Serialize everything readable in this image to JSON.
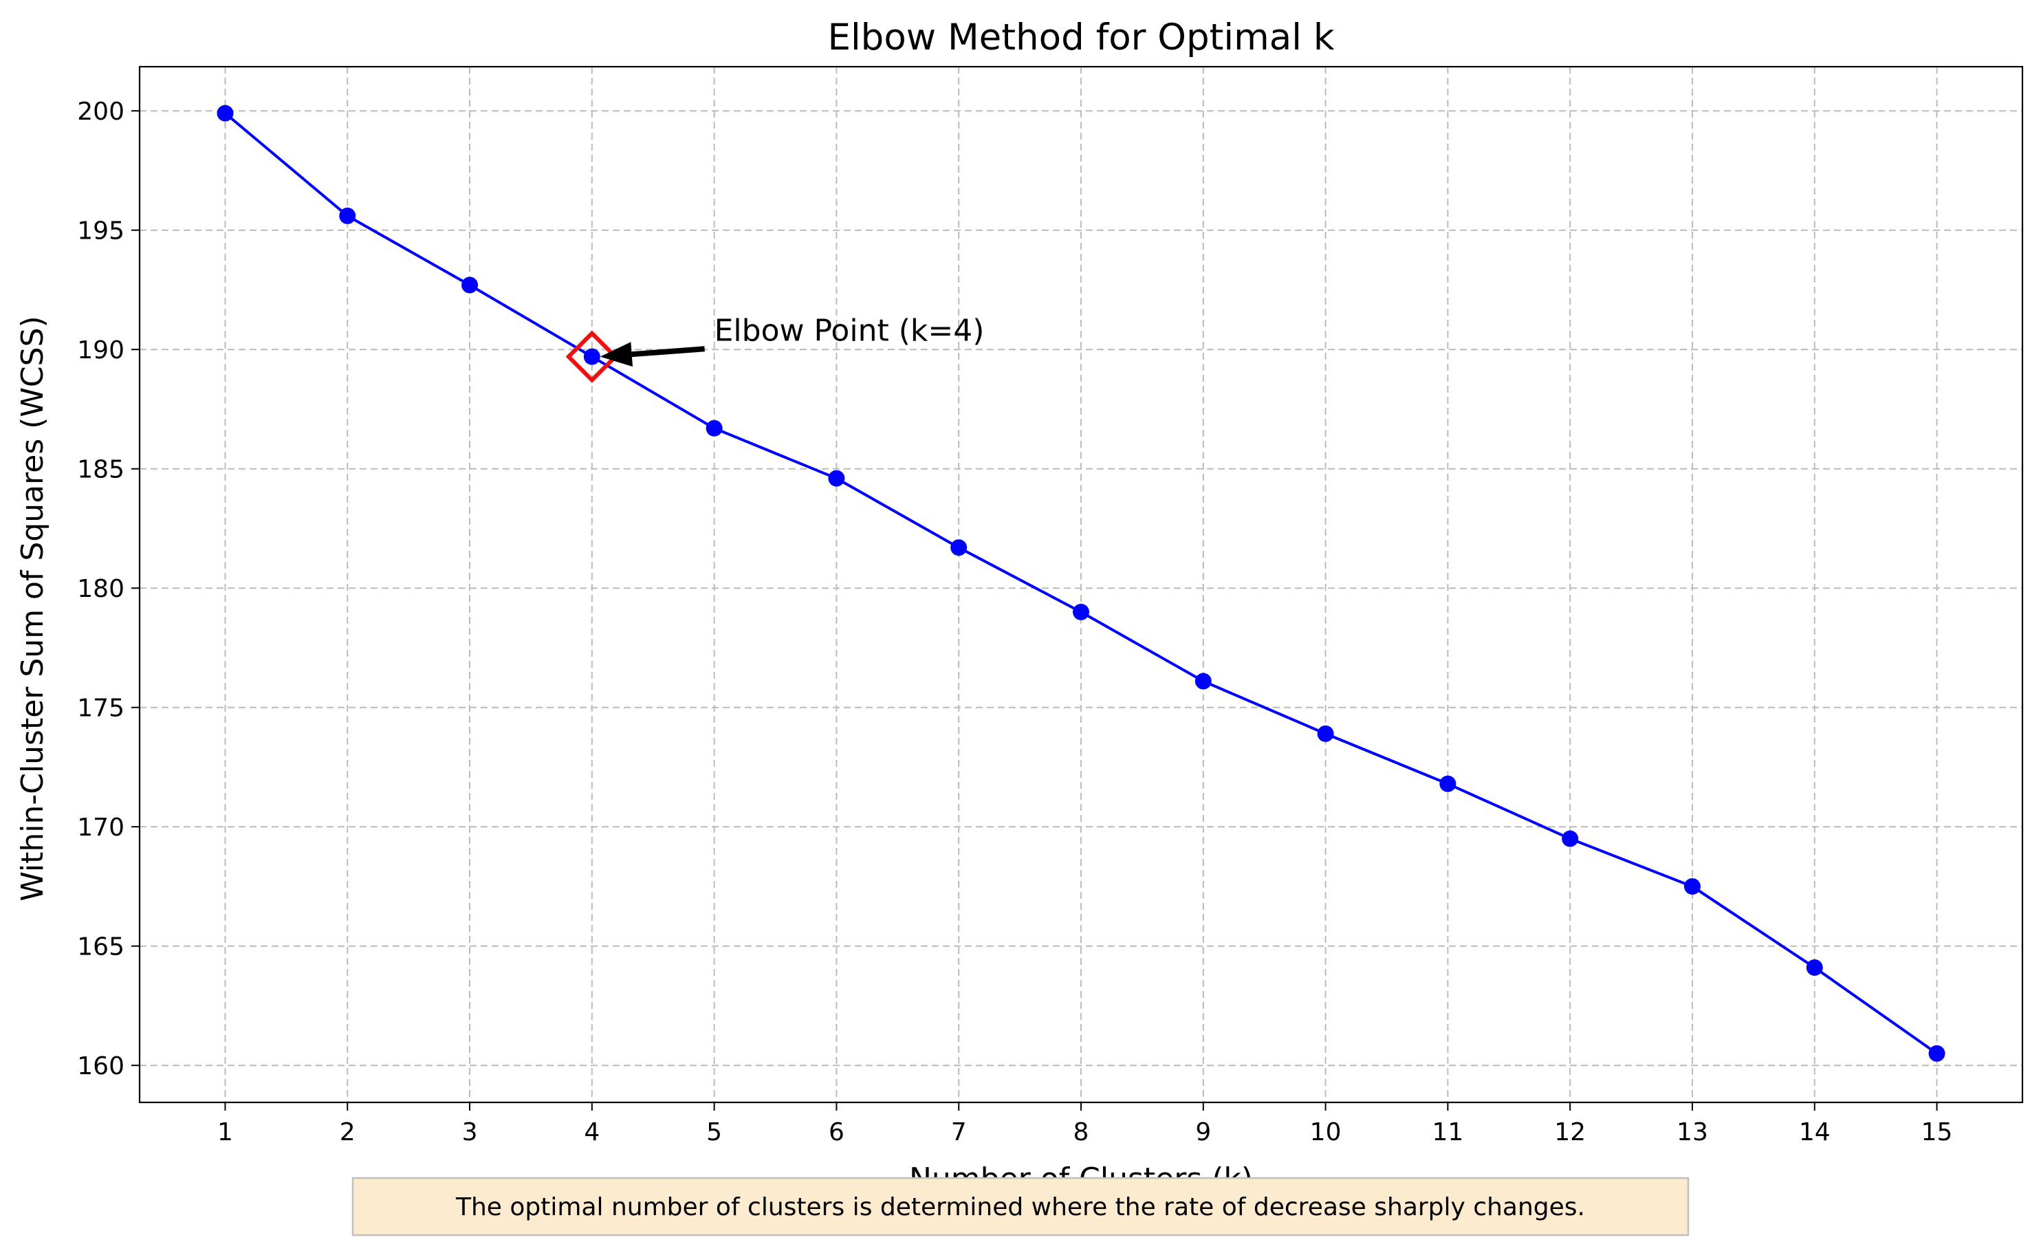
{
  "chart_data": {
    "type": "line",
    "title": "Elbow Method for Optimal k",
    "xlabel": "Number of Clusters (k)",
    "ylabel": "Within-Cluster Sum of Squares (WCSS)",
    "x": [
      1,
      2,
      3,
      4,
      5,
      6,
      7,
      8,
      9,
      10,
      11,
      12,
      13,
      14,
      15
    ],
    "series": [
      {
        "name": "WCSS",
        "color": "#0000ff",
        "marker": "circle",
        "values": [
          199.9,
          195.6,
          192.7,
          189.7,
          186.7,
          184.6,
          181.7,
          179.0,
          176.1,
          173.9,
          171.8,
          169.5,
          167.5,
          164.1,
          160.5
        ]
      }
    ],
    "xticks": [
      1,
      2,
      3,
      4,
      5,
      6,
      7,
      8,
      9,
      10,
      11,
      12,
      13,
      14,
      15
    ],
    "yticks": [
      160,
      165,
      170,
      175,
      180,
      185,
      190,
      195,
      200
    ],
    "xlim": [
      0.3,
      15.7
    ],
    "ylim": [
      158.45,
      201.85
    ],
    "grid": true,
    "annotation": {
      "text": "Elbow Point (k=4)",
      "x": 4,
      "y": 189.7,
      "text_x": 5,
      "text_y": 190.2,
      "marker": "diamond",
      "marker_color": "#ee1111",
      "arrow_color": "#000000"
    },
    "footnote": "The optimal number of clusters is determined where the rate of decrease sharply changes."
  },
  "colors": {
    "line": "#0000ff",
    "grid": "#bbbbbb",
    "highlight": "#ee1111",
    "footnote_bg": "#fdebcf",
    "footnote_border": "#bfbfbf"
  }
}
